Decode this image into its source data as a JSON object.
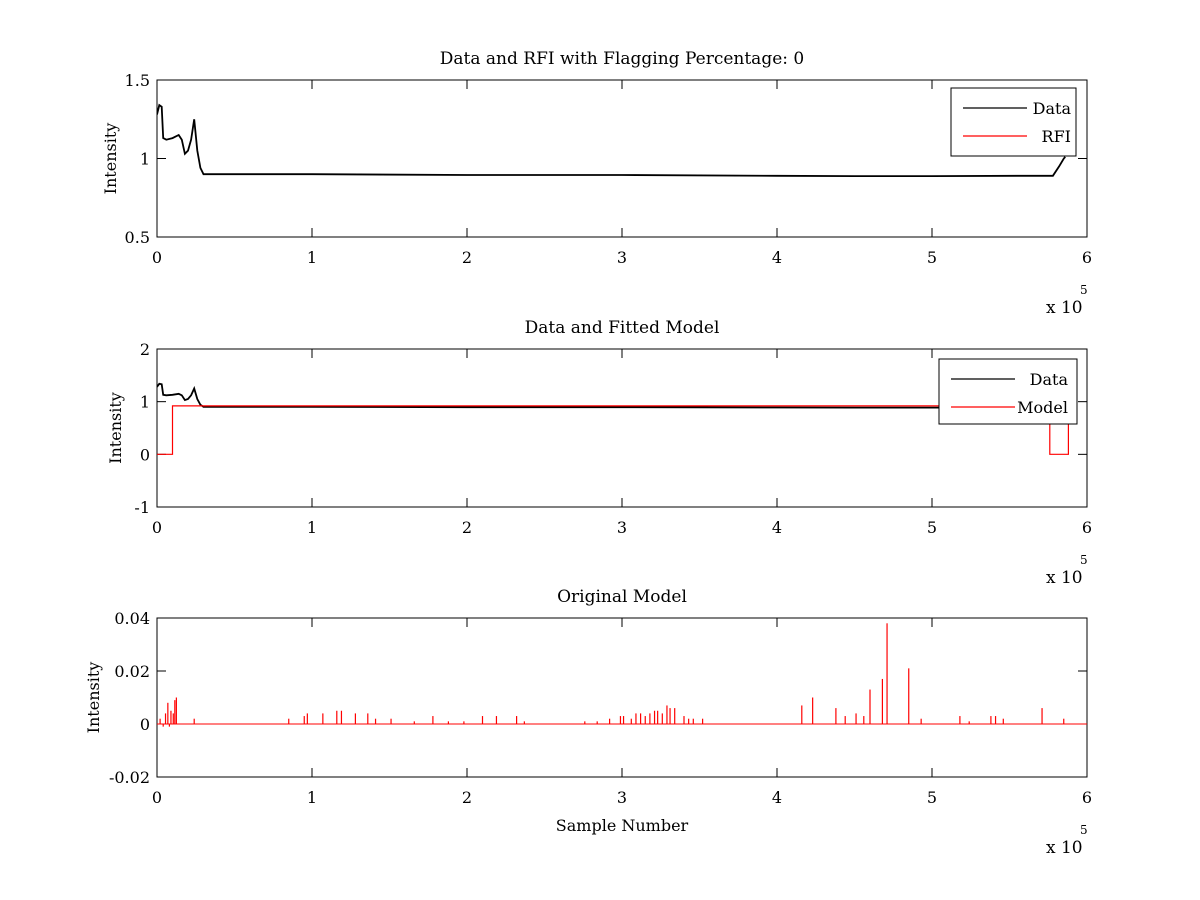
{
  "chart_data": [
    {
      "type": "line",
      "title": "Data and RFI with Flagging Percentage: 0",
      "xlabel": "",
      "ylabel": "Intensity",
      "xlim": [
        0,
        600000
      ],
      "ylim": [
        0.5,
        1.5
      ],
      "xticks": [
        0,
        100000,
        200000,
        300000,
        400000,
        500000,
        600000
      ],
      "xtick_labels": [
        "0",
        "1",
        "2",
        "3",
        "4",
        "5",
        "6"
      ],
      "yticks": [
        0.5,
        1,
        1.5
      ],
      "ytick_labels": [
        "0.5",
        "1",
        "1.5"
      ],
      "x_exponent": {
        "base": "x 10",
        "power": "5"
      },
      "grid": false,
      "legend_position": "top-right",
      "legend": [
        "Data",
        "RFI"
      ],
      "series": [
        {
          "name": "Data",
          "color": "#000000",
          "x": [
            0,
            1500,
            3000,
            4000,
            6000,
            10000,
            14000,
            16000,
            18000,
            20000,
            22000,
            24000,
            26000,
            28000,
            30000,
            100000,
            200000,
            300000,
            400000,
            450000,
            500000,
            560000,
            578000,
            582000,
            585000,
            586000
          ],
          "y": [
            1.28,
            1.34,
            1.33,
            1.13,
            1.12,
            1.13,
            1.15,
            1.12,
            1.03,
            1.05,
            1.12,
            1.25,
            1.05,
            0.94,
            0.9,
            0.9,
            0.895,
            0.895,
            0.89,
            0.888,
            0.888,
            0.89,
            0.89,
            0.95,
            1.0,
            1.01
          ]
        },
        {
          "name": "RFI",
          "color": "#ff0000",
          "x": [],
          "y": []
        }
      ]
    },
    {
      "type": "line",
      "title": "Data and Fitted Model",
      "xlabel": "",
      "ylabel": "Intensity",
      "xlim": [
        0,
        600000
      ],
      "ylim": [
        -1,
        2
      ],
      "xticks": [
        0,
        100000,
        200000,
        300000,
        400000,
        500000,
        600000
      ],
      "xtick_labels": [
        "0",
        "1",
        "2",
        "3",
        "4",
        "5",
        "6"
      ],
      "yticks": [
        -1,
        0,
        1,
        2
      ],
      "ytick_labels": [
        "-1",
        "0",
        "1",
        "2"
      ],
      "x_exponent": {
        "base": "x 10",
        "power": "5"
      },
      "grid": false,
      "legend_position": "top-right",
      "legend": [
        "Data",
        "Model"
      ],
      "series": [
        {
          "name": "Data",
          "color": "#000000",
          "x": [
            0,
            1500,
            3000,
            4000,
            6000,
            10000,
            14000,
            16000,
            18000,
            20000,
            22000,
            24000,
            26000,
            28000,
            30000,
            100000,
            200000,
            300000,
            400000,
            450000,
            500000,
            560000,
            578000,
            582000,
            585000,
            586000
          ],
          "y": [
            1.28,
            1.34,
            1.33,
            1.13,
            1.12,
            1.13,
            1.15,
            1.12,
            1.03,
            1.05,
            1.12,
            1.25,
            1.05,
            0.94,
            0.9,
            0.9,
            0.895,
            0.895,
            0.89,
            0.888,
            0.888,
            0.89,
            0.89,
            0.95,
            1.0,
            1.01
          ]
        },
        {
          "name": "Model",
          "color": "#ff0000",
          "x": [
            0,
            10000,
            10000,
            576000,
            576000,
            588000,
            588000
          ],
          "y": [
            0,
            0,
            0.92,
            0.92,
            0,
            0,
            0.92
          ]
        }
      ]
    },
    {
      "type": "line",
      "title": "Original Model",
      "xlabel": "Sample Number",
      "ylabel": "Intensity",
      "xlim": [
        0,
        600000
      ],
      "ylim": [
        -0.02,
        0.04
      ],
      "xticks": [
        0,
        100000,
        200000,
        300000,
        400000,
        500000,
        600000
      ],
      "xtick_labels": [
        "0",
        "1",
        "2",
        "3",
        "4",
        "5",
        "6"
      ],
      "yticks": [
        -0.02,
        0,
        0.02,
        0.04
      ],
      "ytick_labels": [
        "-0.02",
        "0",
        "0.02",
        "0.04"
      ],
      "x_exponent": {
        "base": "x 10",
        "power": "5"
      },
      "grid": false,
      "series": [
        {
          "name": "",
          "color": "#ff0000",
          "spikes_x": [
            2000,
            4000,
            5500,
            7000,
            8000,
            9000,
            10500,
            11500,
            12500,
            24000,
            85000,
            95000,
            97000,
            107000,
            116000,
            119000,
            128000,
            136000,
            141000,
            151000,
            166000,
            178000,
            188000,
            198000,
            210000,
            219000,
            232000,
            237000,
            276000,
            284000,
            292000,
            299000,
            301000,
            306000,
            309000,
            312000,
            315000,
            318000,
            321000,
            323000,
            326000,
            329000,
            331000,
            334000,
            340000,
            343000,
            346000,
            352000,
            416000,
            423000,
            438000,
            444000,
            451000,
            456000,
            460000,
            468000,
            471000,
            485000,
            493000,
            518000,
            524000,
            538000,
            541000,
            546000,
            571000,
            585000
          ],
          "spikes_y": [
            0.002,
            -0.001,
            0.004,
            0.008,
            -0.001,
            0.005,
            0.004,
            0.009,
            0.01,
            0.002,
            0.002,
            0.003,
            0.004,
            0.004,
            0.005,
            0.005,
            0.004,
            0.004,
            0.002,
            0.002,
            0.001,
            0.003,
            0.001,
            0.001,
            0.003,
            0.003,
            0.003,
            0.001,
            0.001,
            0.001,
            0.002,
            0.003,
            0.003,
            0.002,
            0.004,
            0.004,
            0.003,
            0.004,
            0.005,
            0.005,
            0.004,
            0.007,
            0.006,
            0.006,
            0.003,
            0.002,
            0.002,
            0.002,
            0.007,
            0.01,
            0.006,
            0.003,
            0.004,
            0.003,
            0.013,
            0.017,
            0.038,
            0.021,
            0.002,
            0.003,
            0.001,
            0.003,
            0.003,
            0.002,
            0.006,
            0.002
          ]
        }
      ]
    }
  ]
}
